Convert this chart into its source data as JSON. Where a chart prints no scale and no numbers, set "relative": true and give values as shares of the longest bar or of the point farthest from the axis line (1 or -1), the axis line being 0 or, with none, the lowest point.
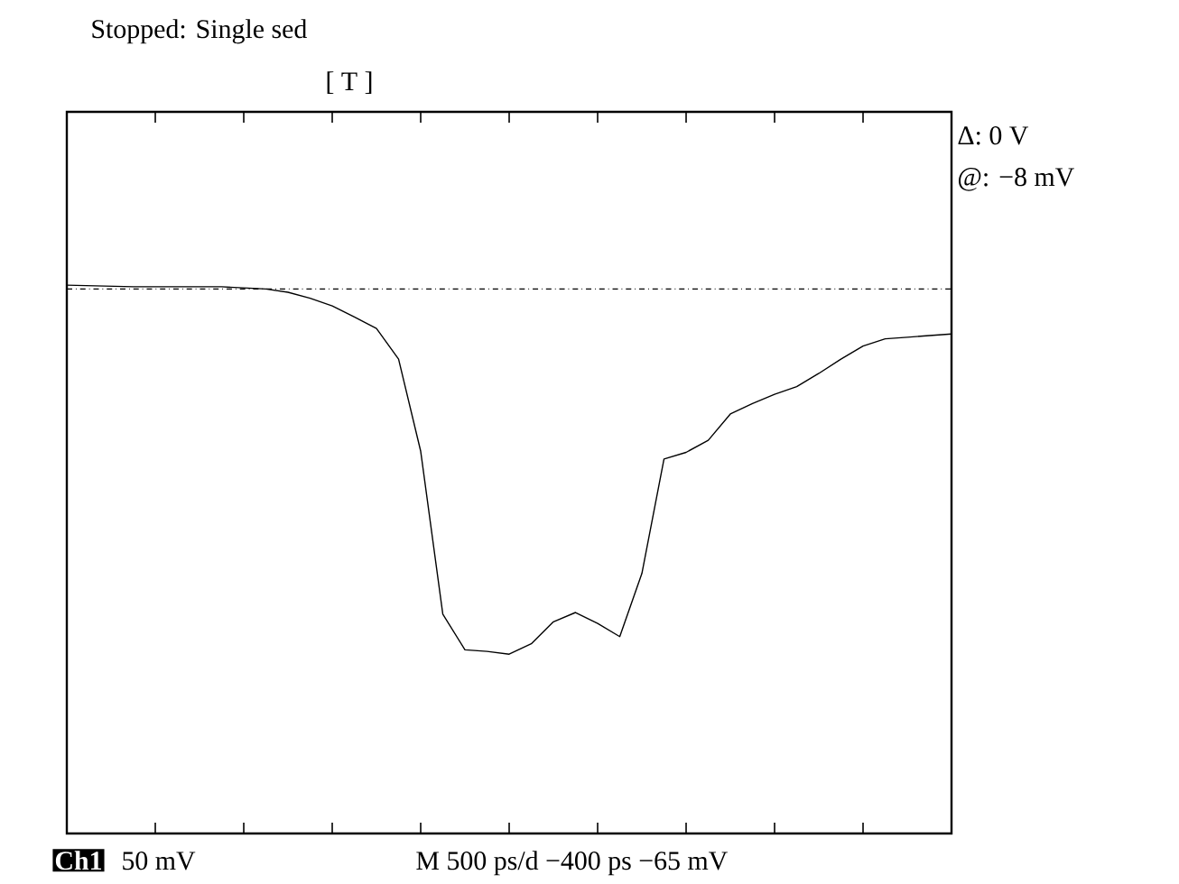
{
  "chart_data": {
    "type": "line",
    "relative": true,
    "title": "Stopped: Single sed",
    "annotations": [
      "[ T ]",
      "Δ: 0 V",
      "@: −8 mV",
      "Ch1",
      "50 mV",
      "M 500 ps/d −400 ps −65 mV"
    ],
    "categories": [
      null,
      null,
      null,
      null,
      null,
      null,
      null,
      null,
      null,
      null,
      null,
      null,
      null,
      null,
      null,
      null,
      null,
      null,
      null,
      null,
      null,
      null,
      null,
      null,
      null,
      null,
      null,
      null,
      null,
      null,
      null,
      null,
      null,
      null,
      null,
      null,
      null,
      null,
      null,
      null,
      null
    ],
    "ref_lines": [
      {
        "axis": "y",
        "value": 0.993,
        "line_style": "dashdot",
        "color": "#000000"
      }
    ],
    "series": [
      {
        "color": "#000000",
        "line_style": "solid",
        "marker": "none",
        "values": [
          1.0,
          0.999,
          0.998,
          0.997,
          0.997,
          0.997,
          0.997,
          0.997,
          0.995,
          0.993,
          0.987,
          0.976,
          0.962,
          0.942,
          0.921,
          0.865,
          0.697,
          0.4,
          0.335,
          0.332,
          0.327,
          0.346,
          0.386,
          0.403,
          0.383,
          0.359,
          0.474,
          0.683,
          0.695,
          0.717,
          0.765,
          0.784,
          0.801,
          0.815,
          0.839,
          0.865,
          0.889,
          0.902,
          0.905,
          0.908,
          0.911
        ]
      }
    ]
  }
}
